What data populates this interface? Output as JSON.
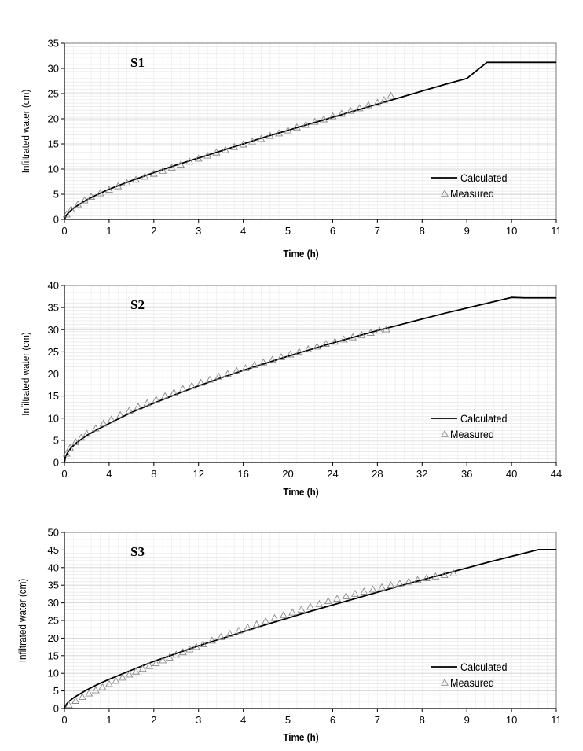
{
  "chart_data": [
    {
      "type": "line",
      "panel_label": "S1",
      "xlabel": "Time (h)",
      "ylabel": "Infiltrated water (cm)",
      "xlim": [
        0,
        11
      ],
      "ylim": [
        0,
        35
      ],
      "x_ticks": [
        0,
        1,
        2,
        3,
        4,
        5,
        6,
        7,
        8,
        9,
        10,
        11
      ],
      "y_ticks": [
        0,
        5,
        10,
        15,
        20,
        25,
        30,
        35
      ],
      "grid": true,
      "legend": "middle-right",
      "series": [
        {
          "name": "Calculated",
          "style": "line",
          "x": [
            0,
            0.05,
            0.1,
            0.2,
            0.3,
            0.5,
            0.75,
            1,
            1.5,
            2,
            2.5,
            3,
            3.5,
            4,
            4.5,
            5,
            5.5,
            6,
            6.5,
            7,
            7.5,
            8,
            8.5,
            9,
            9.45,
            11
          ],
          "y": [
            0,
            0.9,
            1.4,
            2.2,
            2.8,
            3.9,
            5.0,
            6.0,
            7.7,
            9.3,
            10.8,
            12.2,
            13.6,
            15.0,
            16.4,
            17.7,
            19.0,
            20.3,
            21.6,
            22.9,
            24.2,
            25.5,
            26.8,
            28.0,
            31.2,
            31.2
          ]
        },
        {
          "name": "Measured",
          "style": "triangle",
          "x": [
            0.05,
            0.15,
            0.3,
            0.45,
            0.6,
            0.8,
            1.0,
            1.2,
            1.4,
            1.6,
            1.8,
            2.0,
            2.2,
            2.4,
            2.6,
            2.8,
            3.0,
            3.2,
            3.4,
            3.6,
            3.8,
            4.0,
            4.2,
            4.4,
            4.6,
            4.8,
            5.0,
            5.2,
            5.4,
            5.6,
            5.8,
            6.0,
            6.2,
            6.4,
            6.6,
            6.8,
            7.0,
            7.15,
            7.3
          ],
          "y": [
            1.0,
            2.0,
            3.0,
            3.8,
            4.5,
            5.2,
            5.9,
            6.6,
            7.2,
            7.9,
            8.5,
            9.1,
            9.7,
            10.3,
            10.9,
            11.5,
            12.1,
            12.7,
            13.3,
            13.8,
            14.4,
            14.9,
            15.5,
            16.0,
            16.6,
            17.1,
            17.7,
            18.3,
            18.8,
            19.4,
            19.9,
            20.5,
            21.0,
            21.6,
            22.1,
            22.7,
            23.2,
            23.7,
            24.6
          ]
        }
      ]
    },
    {
      "type": "line",
      "panel_label": "S2",
      "xlabel": "Time (h)",
      "ylabel": "Infiltrated water (cm)",
      "xlim": [
        0,
        44
      ],
      "ylim": [
        0,
        40
      ],
      "x_ticks": [
        0,
        4,
        8,
        12,
        16,
        20,
        24,
        28,
        32,
        36,
        40,
        44
      ],
      "y_ticks": [
        0,
        5,
        10,
        15,
        20,
        25,
        30,
        35,
        40
      ],
      "grid": true,
      "legend": "middle-right",
      "series": [
        {
          "name": "Calculated",
          "style": "line",
          "x": [
            0,
            0.1,
            0.3,
            0.6,
            1,
            1.5,
            2,
            3,
            4,
            6,
            8,
            10,
            12,
            14,
            16,
            18,
            20,
            22,
            24,
            26,
            28,
            30,
            32,
            34,
            36,
            38,
            40,
            41.2,
            44
          ],
          "y": [
            0,
            1.3,
            2.3,
            3.3,
            4.3,
            5.2,
            6.1,
            7.5,
            8.8,
            11.3,
            13.4,
            15.4,
            17.3,
            19.1,
            20.8,
            22.4,
            24.0,
            25.5,
            27.0,
            28.4,
            29.8,
            31.1,
            32.4,
            33.7,
            34.9,
            36.1,
            37.3,
            37.2,
            37.2
          ]
        },
        {
          "name": "Measured",
          "style": "triangle",
          "x": [
            0.2,
            0.5,
            1.0,
            1.5,
            2.0,
            2.8,
            3.5,
            4.2,
            5.0,
            5.8,
            6.6,
            7.4,
            8.2,
            9.0,
            9.8,
            10.6,
            11.4,
            12.2,
            13.0,
            13.8,
            14.6,
            15.4,
            16.2,
            17.0,
            17.8,
            18.6,
            19.4,
            20.2,
            21.0,
            21.8,
            22.6,
            23.4,
            24.2,
            25.0,
            25.8,
            26.6,
            27.4,
            28.2,
            28.8
          ],
          "y": [
            2.0,
            3.3,
            4.6,
            5.6,
            6.5,
            7.7,
            8.8,
            9.7,
            10.7,
            11.7,
            12.6,
            13.4,
            14.2,
            15.0,
            15.8,
            16.6,
            17.3,
            18.0,
            18.7,
            19.4,
            20.0,
            20.7,
            21.3,
            22.0,
            22.6,
            23.2,
            23.8,
            24.4,
            25.0,
            25.6,
            26.2,
            26.8,
            27.3,
            27.8,
            28.3,
            28.8,
            29.3,
            29.8,
            30.1
          ]
        }
      ]
    },
    {
      "type": "line",
      "panel_label": "S3",
      "xlabel": "Time (h)",
      "ylabel": "Infiltrated water  (cm)",
      "xlim": [
        0,
        11
      ],
      "ylim": [
        0,
        50
      ],
      "x_ticks": [
        0,
        1,
        2,
        3,
        4,
        5,
        6,
        7,
        8,
        9,
        10,
        11
      ],
      "y_ticks": [
        0,
        5,
        10,
        15,
        20,
        25,
        30,
        35,
        40,
        45,
        50
      ],
      "grid": true,
      "legend": "middle-right",
      "series": [
        {
          "name": "Calculated",
          "style": "line",
          "x": [
            0,
            0.05,
            0.1,
            0.2,
            0.3,
            0.5,
            0.75,
            1,
            1.5,
            2,
            2.5,
            3,
            3.5,
            4,
            4.5,
            5,
            5.5,
            6,
            6.5,
            7,
            7.5,
            8,
            8.5,
            9,
            9.5,
            10,
            10.6,
            11
          ],
          "y": [
            0,
            1.3,
            2.0,
            3.0,
            3.8,
            5.3,
            6.9,
            8.3,
            10.9,
            13.4,
            15.6,
            17.8,
            19.8,
            21.8,
            23.8,
            25.7,
            27.6,
            29.4,
            31.2,
            33.0,
            34.8,
            36.5,
            38.2,
            39.9,
            41.6,
            43.2,
            45.1,
            45.1
          ]
        },
        {
          "name": "Measured",
          "style": "triangle",
          "x": [
            0.1,
            0.25,
            0.4,
            0.55,
            0.7,
            0.85,
            1.0,
            1.15,
            1.3,
            1.45,
            1.6,
            1.75,
            1.9,
            2.05,
            2.2,
            2.35,
            2.5,
            2.65,
            2.8,
            2.95,
            3.1,
            3.3,
            3.5,
            3.7,
            3.9,
            4.1,
            4.3,
            4.5,
            4.7,
            4.9,
            5.1,
            5.3,
            5.5,
            5.7,
            5.9,
            6.1,
            6.3,
            6.5,
            6.7,
            6.9,
            7.1,
            7.3,
            7.5,
            7.7,
            7.9,
            8.1,
            8.3,
            8.5,
            8.7
          ],
          "y": [
            1.0,
            2.2,
            3.3,
            4.3,
            5.2,
            6.1,
            7.0,
            7.9,
            8.8,
            9.7,
            10.5,
            11.3,
            12.1,
            12.9,
            13.7,
            14.5,
            15.3,
            16.0,
            16.8,
            17.5,
            18.3,
            19.3,
            20.3,
            21.2,
            22.1,
            23.0,
            23.9,
            24.8,
            25.7,
            26.5,
            27.3,
            28.1,
            28.9,
            29.7,
            30.5,
            31.2,
            31.9,
            32.6,
            33.2,
            33.8,
            34.4,
            35.0,
            35.5,
            36.0,
            36.5,
            37.0,
            37.5,
            37.9,
            38.4
          ]
        }
      ]
    }
  ]
}
